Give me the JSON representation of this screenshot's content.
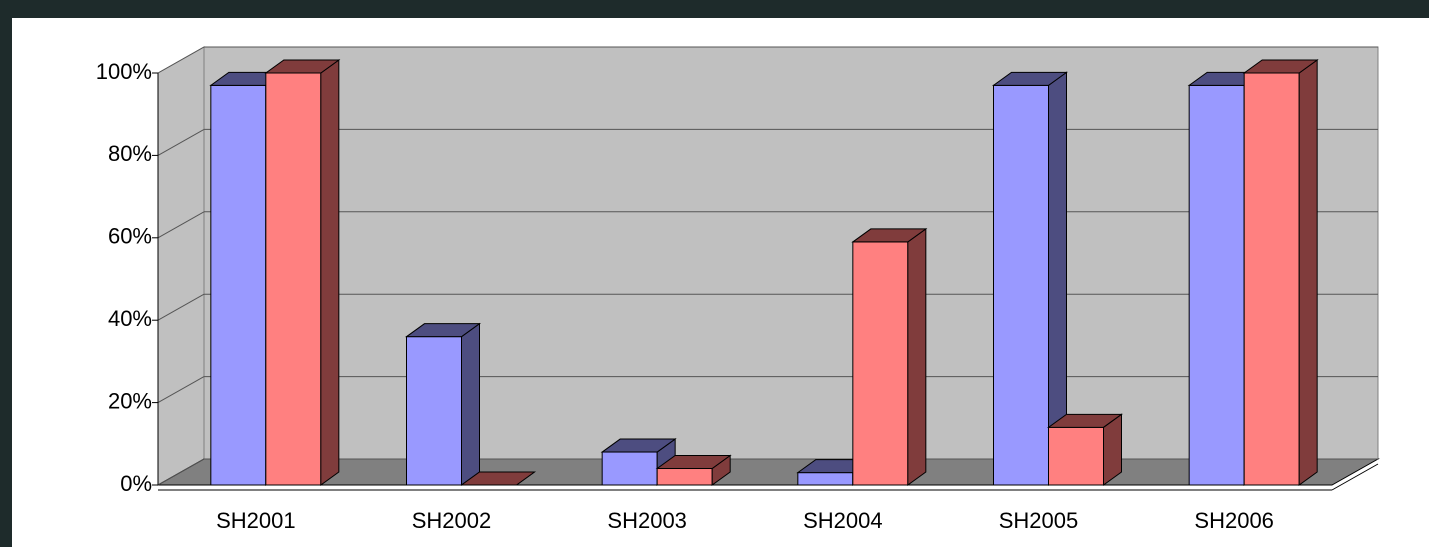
{
  "chart_data": {
    "type": "bar3d",
    "categories": [
      "SH2001",
      "SH2002",
      "SH2003",
      "SH2004",
      "SH2005",
      "SH2006"
    ],
    "series": [
      {
        "color": "#9999ff",
        "side": "#4d4d80",
        "values": [
          97,
          36,
          8,
          3,
          97,
          97
        ]
      },
      {
        "color": "#ff8080",
        "side": "#803c3c",
        "values": [
          100,
          0,
          4,
          59,
          14,
          100
        ]
      }
    ],
    "ylim": [
      0,
      100
    ],
    "yticks": [
      {
        "value": 0,
        "label": "0%"
      },
      {
        "value": 20,
        "label": "20%"
      },
      {
        "value": 40,
        "label": "40%"
      },
      {
        "value": 60,
        "label": "60%"
      },
      {
        "value": 80,
        "label": "80%"
      },
      {
        "value": 100,
        "label": "100%"
      }
    ],
    "grid": true
  }
}
